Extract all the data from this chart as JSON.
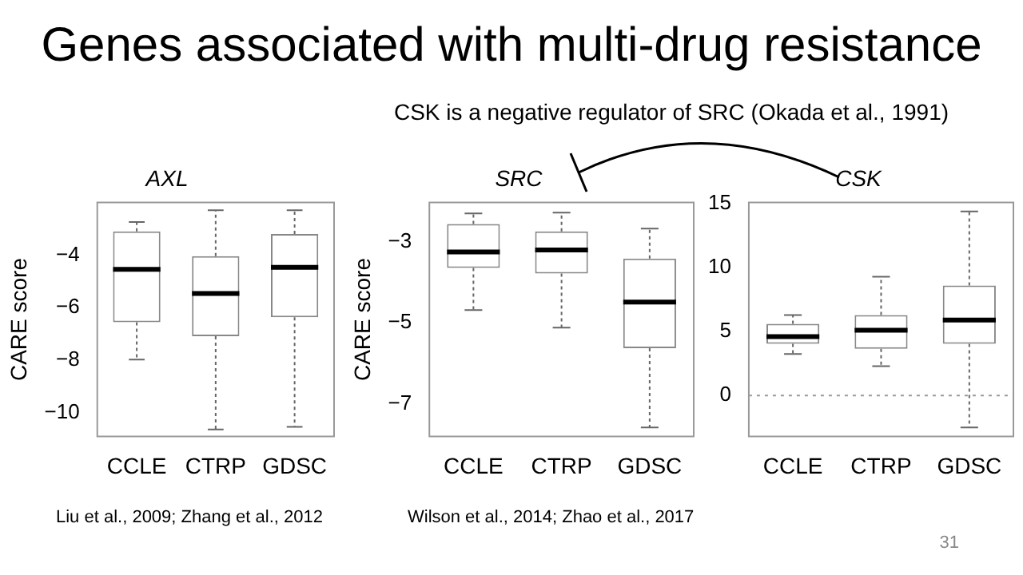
{
  "chart_data": [
    {
      "type": "box",
      "title": "AXL",
      "ylabel": "CARE score",
      "categories": [
        "CCLE",
        "CTRP",
        "GDSC"
      ],
      "ylim": [
        -10.9,
        -2.0
      ],
      "yticks": [
        {
          "value": -10,
          "label": "−10"
        },
        {
          "value": -8,
          "label": "−8"
        },
        {
          "value": -6,
          "label": "−6"
        },
        {
          "value": -4,
          "label": "−4"
        }
      ],
      "grid": false,
      "boxes": [
        {
          "low": -7.98,
          "q1": -6.56,
          "median": -4.54,
          "q3": -3.1,
          "high": -2.74
        },
        {
          "low": -10.64,
          "q1": -7.09,
          "median": -5.46,
          "q3": -4.04,
          "high": -2.29
        },
        {
          "low": -10.54,
          "q1": -6.37,
          "median": -4.47,
          "q3": -3.2,
          "high": -2.29
        }
      ],
      "annotations": [
        "Genes associated with multi-drug resistance",
        "Liu et al., 2009; Zhang et al., 2012"
      ]
    },
    {
      "type": "box",
      "title": "SRC",
      "ylabel": "CARE score",
      "categories": [
        "CCLE",
        "CTRP",
        "GDSC"
      ],
      "ylim": [
        -7.8,
        -2.04
      ],
      "yticks": [
        {
          "value": -7,
          "label": "−7"
        },
        {
          "value": -5,
          "label": "−5"
        },
        {
          "value": -3,
          "label": "−3"
        }
      ],
      "grid": false,
      "boxes": [
        {
          "low": -4.69,
          "q1": -3.65,
          "median": -3.26,
          "q3": -2.57,
          "high": -2.31
        },
        {
          "low": -5.12,
          "q1": -3.79,
          "median": -3.21,
          "q3": -2.75,
          "high": -2.29
        },
        {
          "low": -7.58,
          "q1": -5.63,
          "median": -4.49,
          "q3": -3.42,
          "high": -2.68
        }
      ],
      "annotations": [
        "CSK is a negative regulator of SRC (Okada et al., 1991)",
        "Wilson et al., 2014; Zhao et al., 2017"
      ]
    },
    {
      "type": "box",
      "title": "CSK",
      "categories": [
        "CCLE",
        "CTRP",
        "GDSC"
      ],
      "ylim": [
        -3.2,
        15.1
      ],
      "yticks": [
        0,
        5,
        10,
        15
      ],
      "grid": false,
      "boxes": [
        {
          "low": 3.25,
          "q1": 4.05,
          "median": 4.6,
          "q3": 5.6,
          "high": 6.3
        },
        {
          "low": 2.3,
          "q1": 3.65,
          "median": 5.1,
          "q3": 6.3,
          "high": 9.3
        },
        {
          "low": -2.5,
          "q1": 4.05,
          "median": 5.9,
          "q3": 8.6,
          "high": 14.4
        }
      ],
      "ref_lines": [
        {
          "axis": "y",
          "value": 0,
          "color": "#999999",
          "line_style": "dotted"
        }
      ],
      "annotations": [
        "31"
      ]
    }
  ]
}
